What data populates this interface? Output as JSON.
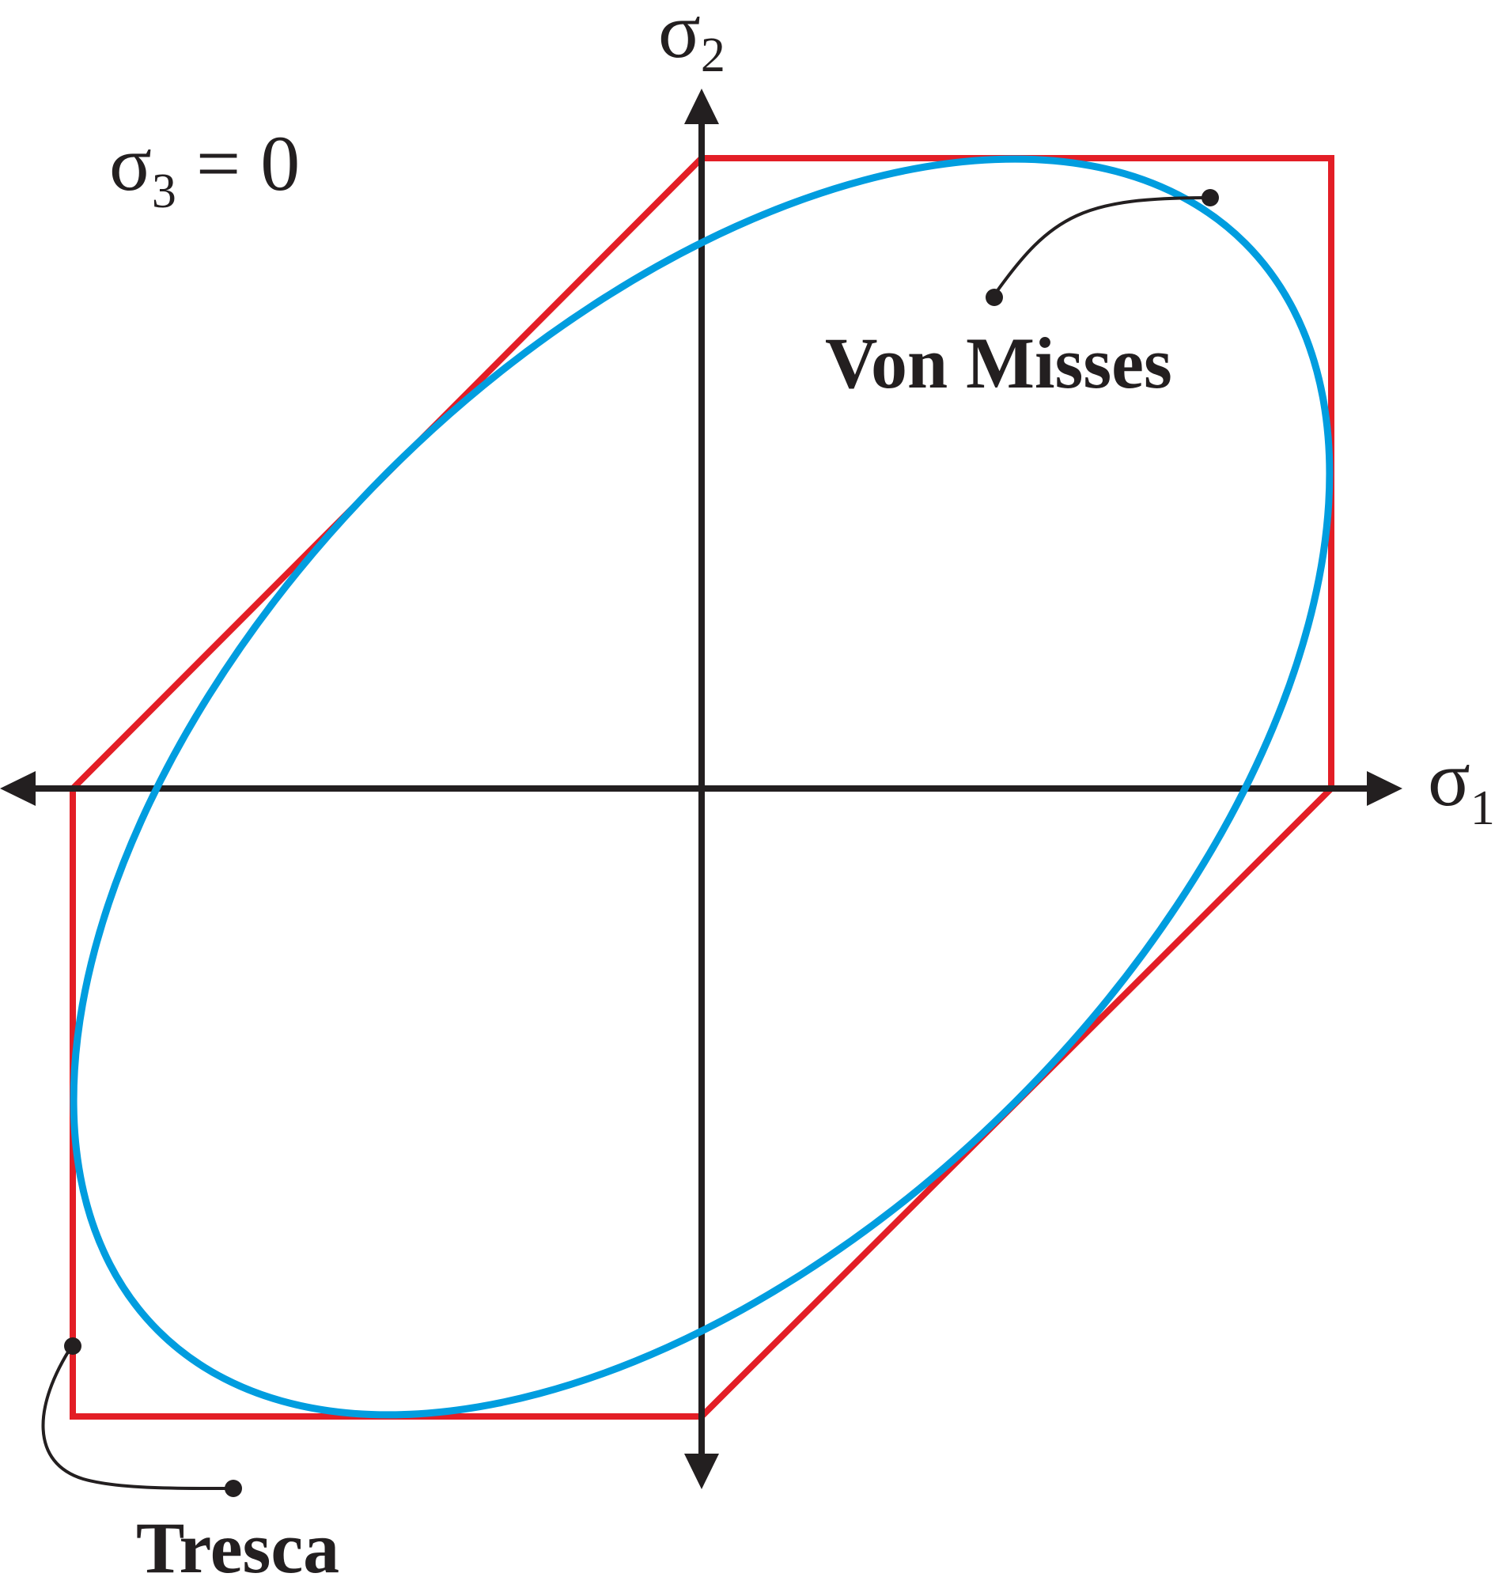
{
  "axes": {
    "x_label_symbol": "σ",
    "x_label_subscript": "1",
    "y_label_symbol": "σ",
    "y_label_subscript": "2"
  },
  "condition": {
    "symbol": "σ",
    "subscript": "3",
    "rest": " = 0"
  },
  "curves": {
    "tresca": {
      "label": "Tresca",
      "color": "#e31e26"
    },
    "von_mises": {
      "label": "Von Misses",
      "color": "#009ddf"
    }
  },
  "colors": {
    "axis": "#231f20",
    "leader": "#231f20"
  }
}
